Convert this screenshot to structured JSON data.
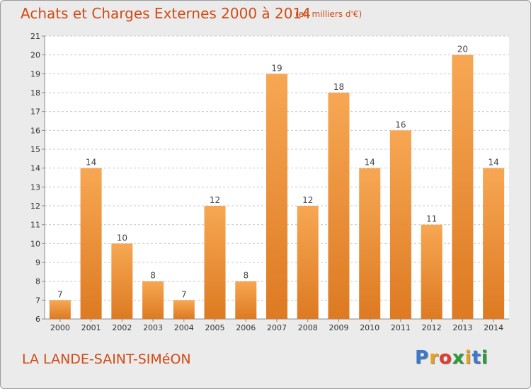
{
  "header": {
    "title": "Achats et Charges Externes 2000 à 2014",
    "unit": "(en milliers d'€)"
  },
  "footer": {
    "commune": "LA LANDE-SAINT-SIMéON",
    "logo_letters": [
      "P",
      "r",
      "o",
      "x",
      "i",
      "t",
      "i"
    ],
    "logo_colors": [
      "#3a78c9",
      "#e9a21a",
      "#e33b2e",
      "#2b9c3a",
      "#e9a21a",
      "#3a78c9",
      "#2b9c3a"
    ]
  },
  "colors": {
    "bar_light": "#f7a753",
    "bar_dark": "#dd7a22",
    "accent": "#d24a14"
  },
  "chart_data": {
    "type": "bar",
    "title": "Achats et Charges Externes 2000 à 2014",
    "subtitle": "(en milliers d'€)",
    "categories": [
      "2000",
      "2001",
      "2002",
      "2003",
      "2004",
      "2005",
      "2006",
      "2007",
      "2008",
      "2009",
      "2010",
      "2011",
      "2012",
      "2013",
      "2014"
    ],
    "values": [
      7,
      14,
      10,
      8,
      7,
      12,
      8,
      19,
      12,
      18,
      14,
      16,
      11,
      20,
      14
    ],
    "ylim": [
      6,
      21
    ],
    "yticks": [
      6,
      7,
      8,
      9,
      10,
      11,
      12,
      13,
      14,
      15,
      16,
      17,
      18,
      19,
      20,
      21
    ],
    "grid": "horizontal dashed"
  }
}
